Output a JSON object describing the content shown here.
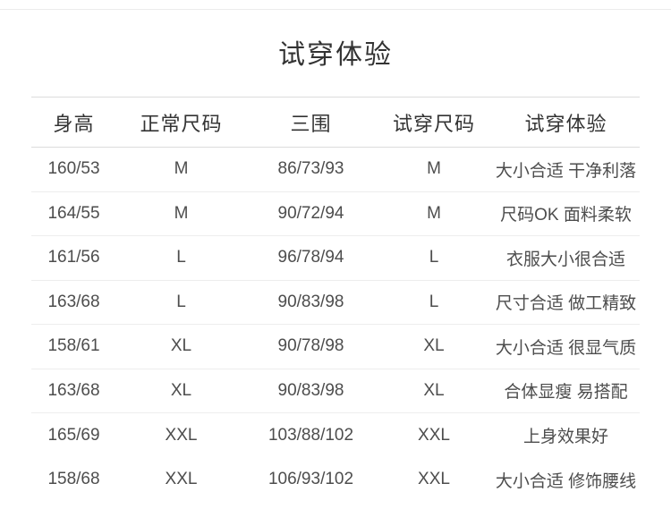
{
  "page": {
    "title": "试穿体验"
  },
  "table": {
    "headers": [
      "身高",
      "正常尺码",
      "三围",
      "试穿尺码",
      "试穿体验"
    ],
    "rows": [
      [
        "160/53",
        "M",
        "86/73/93",
        "M",
        "大小合适 干净利落"
      ],
      [
        "164/55",
        "M",
        "90/72/94",
        "M",
        "尺码OK 面料柔软"
      ],
      [
        "161/56",
        "L",
        "96/78/94",
        "L",
        "衣服大小很合适"
      ],
      [
        "163/68",
        "L",
        "90/83/98",
        "L",
        "尺寸合适 做工精致"
      ],
      [
        "158/61",
        "XL",
        "90/78/98",
        "XL",
        "大小合适 很显气质"
      ],
      [
        "163/68",
        "XL",
        "90/83/98",
        "XL",
        "合体显瘦 易搭配"
      ],
      [
        "165/69",
        "XXL",
        "103/88/102",
        "XXL",
        "上身效果好"
      ],
      [
        "158/68",
        "XXL",
        "106/93/102",
        "XXL",
        "大小合适 修饰腰线"
      ]
    ]
  },
  "colors": {
    "background": "#ffffff",
    "title_text": "#333333",
    "header_text": "#333333",
    "body_text": "#4d4d4d",
    "header_divider": "#dcdcdc",
    "row_divider": "#ededed",
    "top_divider": "#ececec"
  }
}
